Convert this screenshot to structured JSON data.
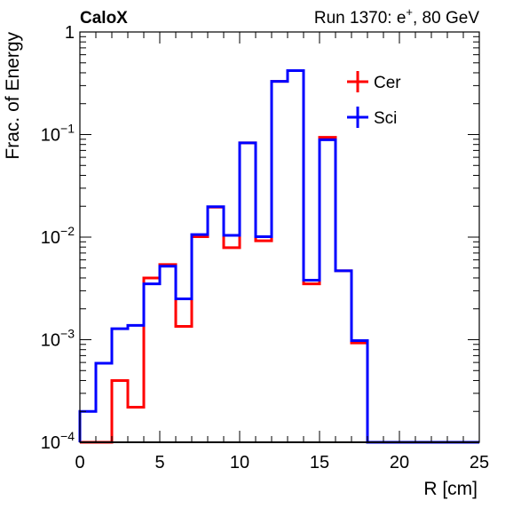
{
  "header": {
    "left": "CaloX",
    "right_prefix": "Run 1370: e",
    "right_sup": "+",
    "right_suffix": ", 80 GeV"
  },
  "chart_data": {
    "type": "histogram-step",
    "xlabel": "R [cm]",
    "ylabel": "Frac. of Energy",
    "xlim": [
      0,
      25
    ],
    "ylim": [
      0.0001,
      1
    ],
    "ylog": true,
    "grid": false,
    "legend_position": "top-right",
    "x_ticks": [
      "0",
      "5",
      "10",
      "15",
      "20",
      "25"
    ],
    "y_ticks": [
      {
        "base": "10",
        "exp": "−4"
      },
      {
        "base": "10",
        "exp": "−3"
      },
      {
        "base": "10",
        "exp": "−2"
      },
      {
        "base": "10",
        "exp": "−1"
      },
      {
        "base": "1",
        "exp": ""
      }
    ],
    "bin_edges": [
      0,
      1,
      2,
      3,
      4,
      5,
      6,
      7,
      8,
      9,
      10,
      11,
      12,
      13,
      14,
      15,
      16,
      17,
      18,
      19,
      20,
      21,
      22,
      23,
      24,
      25
    ],
    "series": [
      {
        "name": "Cer",
        "color": "#ff0000",
        "values": [
          0.0001,
          0.0001,
          0.0004,
          0.00022,
          0.004,
          0.0054,
          0.00135,
          0.0101,
          0.0196,
          0.0079,
          0.083,
          0.0092,
          0.33,
          0.42,
          0.0035,
          0.094,
          0.0047,
          0.00093,
          0.0001,
          0.0001,
          0.0001,
          0.0001,
          0.0001,
          0.0001,
          0.0001
        ]
      },
      {
        "name": "Sci",
        "color": "#0000ff",
        "values": [
          0.0002,
          0.00059,
          0.00128,
          0.00138,
          0.0035,
          0.0052,
          0.0025,
          0.0106,
          0.0198,
          0.0104,
          0.083,
          0.0101,
          0.33,
          0.42,
          0.0038,
          0.089,
          0.0047,
          0.00098,
          0.0001,
          0.0001,
          0.0001,
          0.0001,
          0.0001,
          0.0001,
          0.0001
        ]
      }
    ]
  }
}
